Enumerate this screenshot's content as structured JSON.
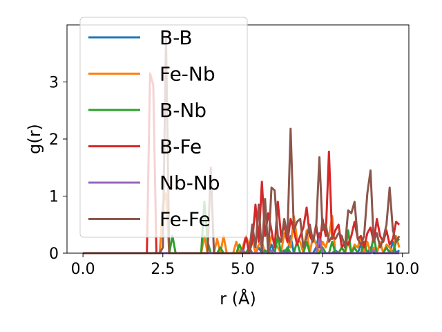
{
  "chart_data": {
    "type": "line",
    "xlabel": "r (Å)",
    "ylabel": "g(r)",
    "xlim": [
      -0.5,
      10.2
    ],
    "ylim": [
      0,
      4.0
    ],
    "xticks": [
      0.0,
      2.5,
      5.0,
      7.5,
      10.0
    ],
    "xtick_labels": [
      "0.0",
      "2.5",
      "5.0",
      "7.5",
      "10.0"
    ],
    "yticks": [
      0,
      1,
      2,
      3
    ],
    "ytick_labels": [
      "0",
      "1",
      "2",
      "3"
    ],
    "grid": false,
    "legend_position": "upper-left",
    "x": [
      0.0,
      0.1,
      0.2,
      0.3,
      0.4,
      0.5,
      0.6,
      0.7,
      0.8,
      0.9,
      1.0,
      1.1,
      1.2,
      1.3,
      1.4,
      1.5,
      1.6,
      1.7,
      1.8,
      1.9,
      2.0,
      2.1,
      2.2,
      2.3,
      2.4,
      2.5,
      2.6,
      2.7,
      2.8,
      2.9,
      3.0,
      3.1,
      3.2,
      3.3,
      3.4,
      3.5,
      3.6,
      3.7,
      3.8,
      3.9,
      4.0,
      4.1,
      4.2,
      4.3,
      4.4,
      4.5,
      4.6,
      4.7,
      4.8,
      4.9,
      5.0,
      5.1,
      5.2,
      5.3,
      5.4,
      5.5,
      5.6,
      5.7,
      5.8,
      5.9,
      6.0,
      6.1,
      6.2,
      6.3,
      6.4,
      6.5,
      6.6,
      6.7,
      6.8,
      6.9,
      7.0,
      7.1,
      7.2,
      7.3,
      7.4,
      7.5,
      7.6,
      7.7,
      7.8,
      7.9,
      8.0,
      8.1,
      8.2,
      8.3,
      8.4,
      8.5,
      8.6,
      8.7,
      8.8,
      8.9,
      9.0,
      9.1,
      9.2,
      9.3,
      9.4,
      9.5,
      9.6,
      9.7,
      9.8,
      9.9
    ],
    "series": [
      {
        "name": "B-B",
        "color": "#1f77b4",
        "values": [
          0,
          0,
          0,
          0,
          0,
          0,
          0,
          0,
          0,
          0,
          0,
          0,
          0,
          0,
          0,
          0,
          0,
          0,
          0,
          0,
          0,
          0,
          0,
          0,
          0,
          0,
          0,
          0,
          0,
          0,
          0,
          0,
          0,
          0,
          0,
          0,
          0,
          0,
          0,
          0,
          0,
          0,
          0,
          0,
          0,
          0,
          0,
          0,
          0,
          0,
          0,
          0,
          0,
          0,
          0,
          0.1,
          0,
          0,
          0,
          0.15,
          0,
          0,
          0,
          0.05,
          0,
          0.3,
          0,
          0,
          0,
          0,
          0,
          0,
          0,
          0.1,
          0.35,
          0,
          0,
          0,
          0,
          0.05,
          0,
          0,
          0,
          0,
          0,
          0,
          0,
          0.15,
          0,
          0,
          0.1,
          0,
          0,
          0,
          0,
          0,
          0,
          0.2,
          0,
          0.05
        ]
      },
      {
        "name": "Fe-Nb",
        "color": "#ff7f0e",
        "values": [
          0,
          0,
          0,
          0,
          0,
          0,
          0,
          0,
          0,
          0,
          0,
          0,
          0,
          0,
          0,
          0,
          0,
          0,
          0,
          0,
          0,
          0,
          0,
          0,
          0,
          0.85,
          1.05,
          0,
          0,
          0,
          0,
          0,
          0,
          0,
          0,
          0,
          0,
          0,
          0.3,
          0,
          0,
          0,
          0.25,
          0,
          0.3,
          0,
          0,
          0,
          0.2,
          0,
          0.1,
          0.3,
          0.15,
          0.25,
          0,
          0.15,
          0.2,
          0,
          0.05,
          0.3,
          0.2,
          0.1,
          0,
          0.35,
          0.2,
          0.1,
          0.65,
          0.25,
          0.2,
          0,
          0.4,
          0,
          0.3,
          0.15,
          0,
          0.2,
          0.1,
          0.3,
          0.65,
          0,
          0,
          0.1,
          0,
          0.2,
          0,
          0.15,
          0.1,
          0.3,
          0,
          0.2,
          0,
          0.1,
          0,
          0.2,
          0,
          0.15,
          0.1,
          0,
          0.3,
          0.1
        ]
      },
      {
        "name": "B-Nb",
        "color": "#2ca02c",
        "values": [
          0,
          0,
          0,
          0,
          0,
          0,
          0,
          0,
          0,
          0,
          0,
          0,
          0,
          0,
          0,
          0,
          0,
          0,
          0,
          0,
          0,
          0,
          0,
          0,
          0,
          0,
          0,
          0,
          0.3,
          0,
          0,
          0,
          0,
          0,
          0,
          0,
          0,
          0,
          0.9,
          0.2,
          0,
          0,
          0,
          0.1,
          0,
          0,
          0,
          0,
          0,
          0.15,
          0,
          0,
          0.1,
          0,
          0,
          0,
          0,
          0.05,
          0,
          0,
          0,
          0.3,
          0,
          0,
          0.1,
          0,
          0,
          0.2,
          0,
          0,
          0.2,
          0,
          0,
          0,
          0,
          0.1,
          0,
          0,
          0.2,
          0,
          0,
          0.1,
          0,
          0.4,
          0,
          0.1,
          0,
          0,
          0.2,
          0,
          0,
          0.3,
          0,
          0,
          0,
          0.1,
          0,
          0,
          0.2,
          0.25
        ]
      },
      {
        "name": "B-Fe",
        "color": "#d62728",
        "values": [
          0,
          0,
          0,
          0,
          0,
          0,
          0,
          0,
          0,
          0,
          0,
          0,
          0,
          0,
          0,
          0,
          0,
          0,
          0,
          0,
          0,
          3.15,
          2.95,
          0,
          0,
          0,
          0,
          0,
          0,
          0,
          0,
          0,
          0,
          0,
          0,
          0,
          0,
          0,
          0,
          0,
          0,
          0,
          0,
          0,
          0,
          0,
          0,
          0,
          0,
          0,
          0,
          0.3,
          0,
          0.2,
          0.85,
          0.2,
          1.25,
          0.3,
          0.7,
          0.4,
          0.1,
          0.9,
          0.3,
          0.5,
          0.2,
          0.6,
          0.4,
          0.15,
          0.3,
          0.45,
          0.8,
          0.3,
          0.2,
          0.5,
          0.1,
          0.6,
          0.3,
          1.78,
          0.25,
          0.4,
          0.5,
          0.1,
          0.2,
          0.15,
          0.3,
          0.55,
          0.25,
          0.3,
          0.1,
          0.35,
          0.45,
          0.2,
          0.6,
          0.3,
          0.2,
          0.4,
          0.15,
          0.25,
          0.55,
          0.5
        ]
      },
      {
        "name": "Nb-Nb",
        "color": "#9467bd",
        "values": [
          0,
          0,
          0,
          0,
          0,
          0,
          0,
          0,
          0,
          0,
          0,
          0,
          0,
          0,
          0,
          0,
          0,
          0,
          0,
          0,
          0,
          0,
          0,
          0,
          0,
          0,
          0,
          0,
          0,
          0,
          0,
          0,
          0,
          0,
          0,
          0,
          0,
          0,
          0,
          0,
          0,
          0,
          0,
          0,
          0,
          0,
          0,
          0,
          0,
          0,
          0.05,
          0,
          0,
          0,
          0,
          0,
          0,
          0,
          0,
          0.05,
          0,
          0,
          0,
          0,
          0,
          0,
          0,
          0,
          0,
          0,
          0,
          0,
          0,
          0,
          0.25,
          0,
          0,
          0,
          0,
          0,
          0,
          0,
          0,
          0,
          0,
          0,
          0,
          0,
          0,
          0,
          0,
          0.05,
          0,
          0,
          0,
          0,
          0,
          0,
          0,
          0
        ]
      },
      {
        "name": "Fe-Fe",
        "color": "#8c564b",
        "values": [
          0,
          0,
          0,
          0,
          0,
          0,
          0,
          0,
          0,
          0,
          0,
          0,
          0,
          0,
          0,
          0,
          0,
          0,
          0,
          0,
          0,
          0,
          0,
          0,
          0,
          0.1,
          3.8,
          0,
          0,
          0,
          0,
          0,
          0,
          0,
          0,
          0,
          0,
          0,
          0,
          0,
          1.5,
          0,
          0,
          0,
          0,
          0,
          0,
          0,
          0,
          0,
          0,
          0,
          0,
          0.5,
          0.1,
          0.85,
          0,
          0.95,
          0,
          1.15,
          1.1,
          0.3,
          0.2,
          0.6,
          0.3,
          2.18,
          0.4,
          0.55,
          0.6,
          0.1,
          0.3,
          0.5,
          0.2,
          0.45,
          1.68,
          0.4,
          0.5,
          0.2,
          0.3,
          0.25,
          0.35,
          0.3,
          0.1,
          0.75,
          0.7,
          0.9,
          0.25,
          0.15,
          0.3,
          1.05,
          1.45,
          0.2,
          0.35,
          0.1,
          0.25,
          0.5,
          1.15,
          0.4,
          0.2,
          0.3
        ]
      }
    ]
  }
}
